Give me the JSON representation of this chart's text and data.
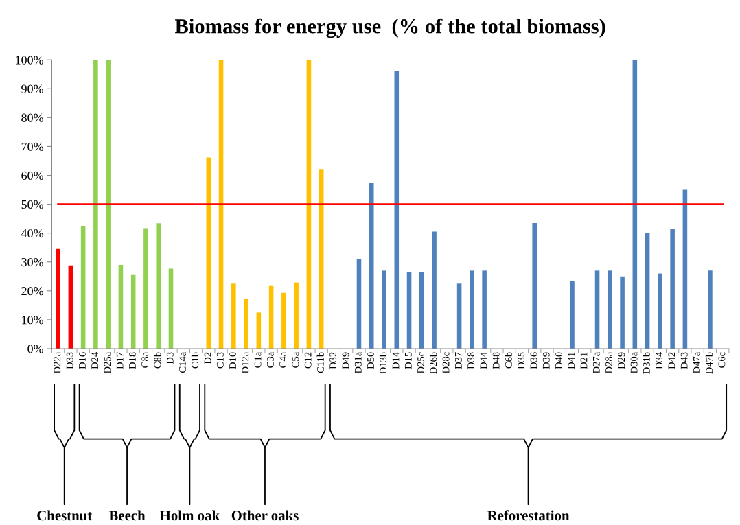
{
  "chart_data": {
    "type": "bar",
    "title": "Biomass for energy use  (% of the total biomass)",
    "categories": [
      "D22a",
      "D33",
      "D16",
      "D24",
      "D25a",
      "D17",
      "D18",
      "C8a",
      "C8b",
      "D3",
      "C14a",
      "C1b",
      "D2",
      "C13",
      "D10",
      "D12a",
      "C1a",
      "C3a",
      "C4a",
      "C5a",
      "C12",
      "C11b",
      "D32",
      "D49",
      "D31a",
      "D50",
      "D13b",
      "D14",
      "D15",
      "D25c",
      "D26b",
      "D28c",
      "D37",
      "D38",
      "D44",
      "D48",
      "C6b",
      "D35",
      "D36",
      "D39",
      "D40",
      "D41",
      "D21",
      "D27a",
      "D28a",
      "D29",
      "D30a",
      "D31b",
      "D34",
      "D42",
      "D43",
      "D47a",
      "D47b",
      "C6c"
    ],
    "values": [
      34.5,
      28.8,
      42.3,
      100,
      100,
      29,
      25.7,
      41.7,
      43.4,
      27.7,
      0,
      0,
      66.2,
      100,
      22.5,
      17.1,
      12.5,
      21.7,
      19.3,
      22.9,
      100,
      62.2,
      0,
      0,
      31,
      57.5,
      27,
      96,
      26.5,
      26.5,
      40.5,
      0,
      22.5,
      27,
      27,
      0,
      0,
      0,
      43.5,
      0,
      0,
      23.5,
      0,
      27,
      27,
      25,
      100,
      40,
      26,
      41.5,
      55,
      0,
      27,
      0
    ],
    "colors": [
      "#ff0000",
      "#ff0000",
      "#92d050",
      "#92d050",
      "#92d050",
      "#92d050",
      "#92d050",
      "#92d050",
      "#92d050",
      "#92d050",
      "#a6a6a6",
      "#a6a6a6",
      "#ffc000",
      "#ffc000",
      "#ffc000",
      "#ffc000",
      "#ffc000",
      "#ffc000",
      "#ffc000",
      "#ffc000",
      "#ffc000",
      "#ffc000",
      "#4f81bd",
      "#4f81bd",
      "#4f81bd",
      "#4f81bd",
      "#4f81bd",
      "#4f81bd",
      "#4f81bd",
      "#4f81bd",
      "#4f81bd",
      "#4f81bd",
      "#4f81bd",
      "#4f81bd",
      "#4f81bd",
      "#4f81bd",
      "#4f81bd",
      "#4f81bd",
      "#4f81bd",
      "#4f81bd",
      "#4f81bd",
      "#4f81bd",
      "#4f81bd",
      "#4f81bd",
      "#4f81bd",
      "#4f81bd",
      "#4f81bd",
      "#4f81bd",
      "#4f81bd",
      "#4f81bd",
      "#4f81bd",
      "#4f81bd",
      "#4f81bd",
      "#4f81bd"
    ],
    "ylim": [
      0,
      100
    ],
    "yticks": [
      {
        "value": 0,
        "label": "0%"
      },
      {
        "value": 10,
        "label": "10%"
      },
      {
        "value": 20,
        "label": "20%"
      },
      {
        "value": 30,
        "label": "30%"
      },
      {
        "value": 40,
        "label": "40%"
      },
      {
        "value": 50,
        "label": "50%"
      },
      {
        "value": 60,
        "label": "60%"
      },
      {
        "value": 70,
        "label": "70%"
      },
      {
        "value": 80,
        "label": "80%"
      },
      {
        "value": 90,
        "label": "90%"
      },
      {
        "value": 100,
        "label": "100%"
      }
    ],
    "ref_lines": [
      {
        "axis": "y",
        "value": 50,
        "color": "#ff0000"
      }
    ],
    "annotations": [
      "Chestnut",
      "Beech",
      "Holm oak",
      "Other oaks",
      "Reforestation"
    ],
    "grid": false,
    "legend": false
  }
}
